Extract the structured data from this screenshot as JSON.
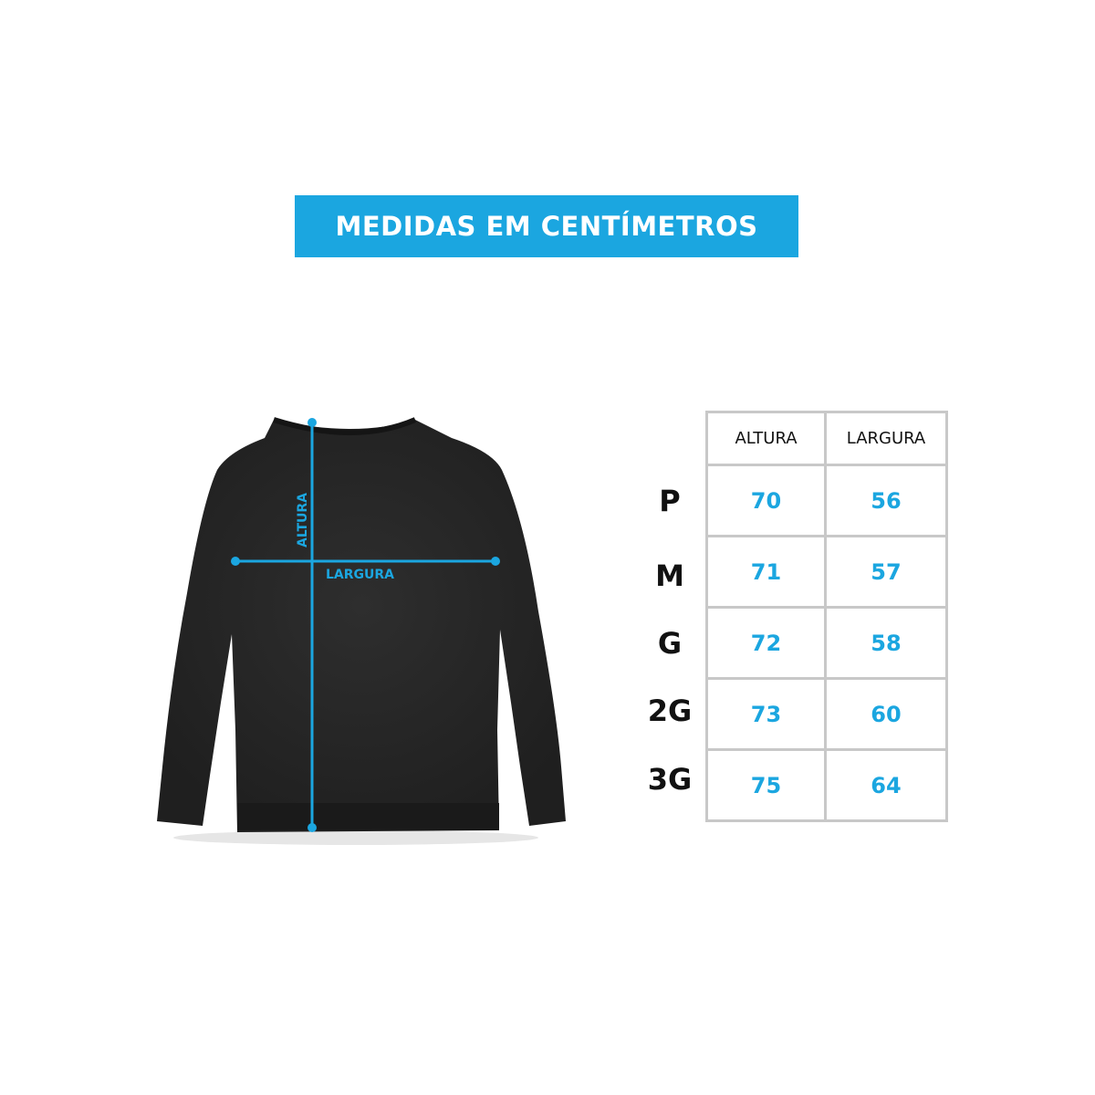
{
  "title": "MEDIDAS EM CENTÍMETROS",
  "accent_color": "#1ba6e0",
  "diagram": {
    "image": "black-crewneck-sweatshirt",
    "height_label": "ALTURA",
    "width_label": "LARGURA"
  },
  "table": {
    "headers": [
      "ALTURA",
      "LARGURA"
    ],
    "rows": [
      {
        "size": "P",
        "altura": "70",
        "largura": "56"
      },
      {
        "size": "M",
        "altura": "71",
        "largura": "57"
      },
      {
        "size": "G",
        "altura": "72",
        "largura": "58"
      },
      {
        "size": "2G",
        "altura": "73",
        "largura": "60"
      },
      {
        "size": "3G",
        "altura": "75",
        "largura": "64"
      }
    ]
  }
}
